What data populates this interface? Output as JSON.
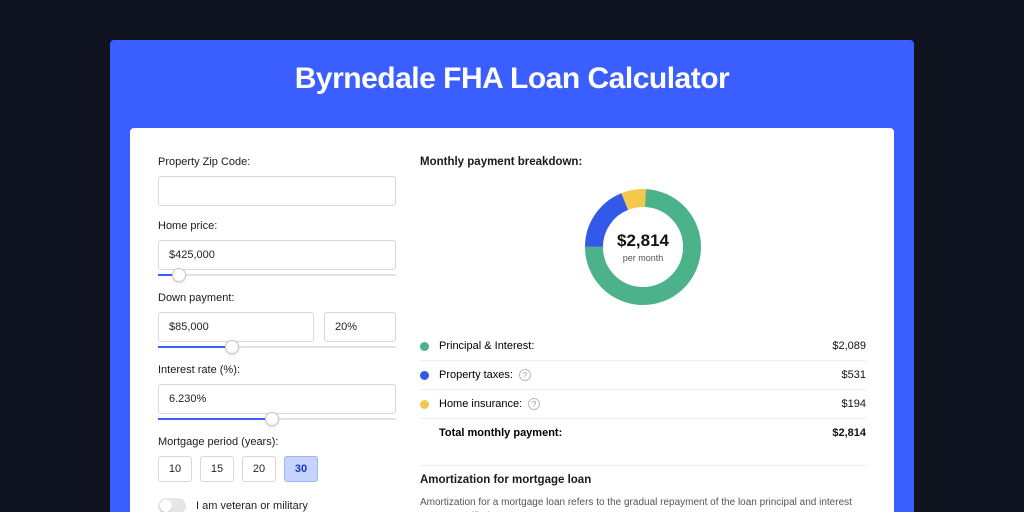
{
  "page": {
    "title": "Byrnedale FHA Loan Calculator",
    "background": "#0f1420",
    "band_color": "#3a5eff"
  },
  "form": {
    "zip": {
      "label": "Property Zip Code:",
      "value": ""
    },
    "home_price": {
      "label": "Home price:",
      "value": "$425,000",
      "slider_pct": 9
    },
    "down_payment": {
      "label": "Down payment:",
      "amount": "$85,000",
      "pct": "20%",
      "slider_pct": 31
    },
    "interest_rate": {
      "label": "Interest rate (%):",
      "value": "6.230%",
      "slider_pct": 48
    },
    "mortgage_period": {
      "label": "Mortgage period (years):",
      "options": [
        "10",
        "15",
        "20",
        "30"
      ],
      "selected": "30"
    },
    "veteran": {
      "label": "I am veteran or military",
      "on": false
    }
  },
  "breakdown": {
    "title": "Monthly payment breakdown:",
    "total_value": "$2,814",
    "total_sub": "per month",
    "donut": {
      "type": "donut",
      "size": 130,
      "thickness": 18,
      "background": "#ffffff",
      "slices": [
        {
          "key": "principal_interest",
          "value": 2089,
          "color": "#4cb28b"
        },
        {
          "key": "property_taxes",
          "value": 531,
          "color": "#3259e8"
        },
        {
          "key": "home_insurance",
          "value": 194,
          "color": "#f2c94c"
        }
      ]
    },
    "items": [
      {
        "label": "Principal & Interest:",
        "amount": "$2,089",
        "color": "#4cb28b",
        "help": false
      },
      {
        "label": "Property taxes:",
        "amount": "$531",
        "color": "#3259e8",
        "help": true
      },
      {
        "label": "Home insurance:",
        "amount": "$194",
        "color": "#f2c94c",
        "help": true
      }
    ],
    "total_row": {
      "label": "Total monthly payment:",
      "amount": "$2,814"
    }
  },
  "amortization": {
    "title": "Amortization for mortgage loan",
    "text": "Amortization for a mortgage loan refers to the gradual repayment of the loan principal and interest over a specified"
  }
}
